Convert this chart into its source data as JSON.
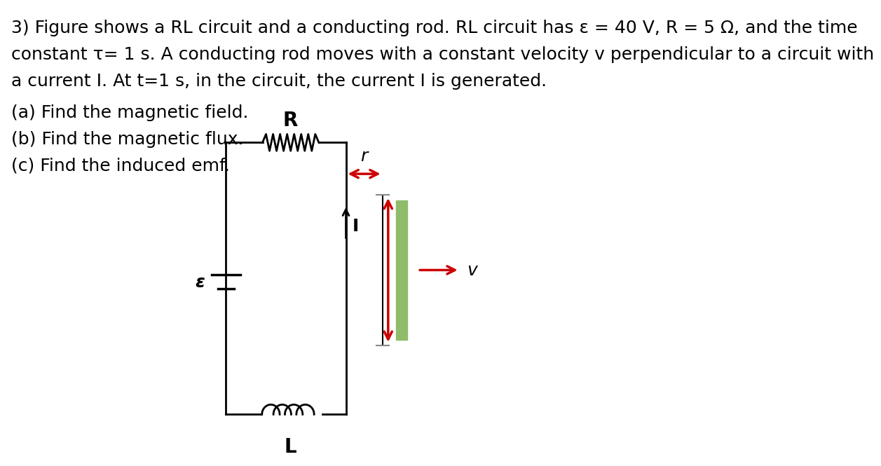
{
  "bg_color": "#ffffff",
  "circuit_color": "#000000",
  "rod_color": "#8fbc6a",
  "arrow_color": "#cc0000",
  "label_R": "R",
  "label_L_bold": "L",
  "label_L_italic": "L",
  "label_eps": "ε",
  "label_I": "I",
  "label_r": "r",
  "label_v": "v",
  "line1": "3) Figure shows a RL circuit and a conducting rod. RL circuit has ε = 40 V, R = 5 Ω, and the time",
  "line2": "constant τ= 1 s. A conducting rod moves with a constant velocity v perpendicular to a circuit with",
  "line3": "a current I. At t=1 s, in the circuit, the current I is generated.",
  "line4": "(a) Find the magnetic field.",
  "line5": "(b) Find the magnetic flux.",
  "line6": "(c) Find the induced emf."
}
